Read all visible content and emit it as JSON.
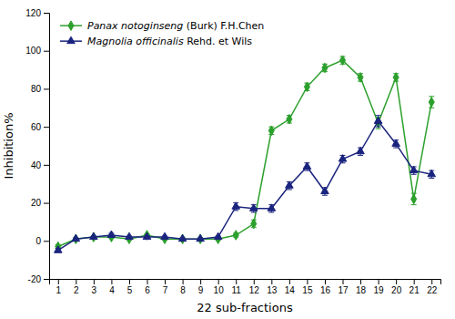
{
  "chart_data": {
    "type": "line",
    "xlabel": "22 sub-fractions",
    "ylabel": "Inhibition%",
    "x": [
      1,
      2,
      3,
      4,
      5,
      6,
      7,
      8,
      9,
      10,
      11,
      12,
      13,
      14,
      15,
      16,
      17,
      18,
      19,
      20,
      21,
      22
    ],
    "xlim": [
      0.5,
      22.5
    ],
    "xticks": [
      1,
      2,
      3,
      4,
      5,
      6,
      7,
      8,
      9,
      10,
      11,
      12,
      13,
      14,
      15,
      16,
      17,
      18,
      19,
      20,
      21,
      22
    ],
    "ylim": [
      -20,
      120
    ],
    "yticks": [
      -20,
      0,
      20,
      40,
      60,
      80,
      100,
      120
    ],
    "grid": false,
    "legend": "upper left",
    "series": [
      {
        "name": "Panax notoginseng (Burk) F.H.Chen",
        "color": "#2ca02c",
        "marker": "diamond",
        "values": [
          -3,
          1,
          2,
          2,
          1,
          3,
          1,
          1,
          1,
          1,
          3,
          9,
          58,
          64,
          81,
          91,
          95,
          86,
          62,
          86,
          22,
          73
        ],
        "errors": [
          1,
          0.5,
          0.5,
          0.5,
          0.5,
          0.5,
          0.5,
          0.5,
          0.5,
          0.5,
          1,
          2,
          2,
          2,
          2,
          2,
          2,
          2,
          3,
          2,
          3,
          3
        ]
      },
      {
        "name": "Magnolia officinalis Rehd. et Wils",
        "color": "#1a237e",
        "marker": "triangle",
        "values": [
          -5,
          1,
          2,
          3,
          2,
          2,
          2,
          1,
          1,
          2,
          18,
          17,
          17,
          29,
          39,
          26,
          43,
          47,
          63,
          51,
          37,
          35
        ],
        "errors": [
          1,
          0.5,
          0.5,
          1,
          0.5,
          0.5,
          0.5,
          0.5,
          0.5,
          0.5,
          2,
          2,
          2,
          2,
          2,
          2,
          2,
          2,
          3,
          2,
          2,
          2
        ]
      }
    ]
  }
}
